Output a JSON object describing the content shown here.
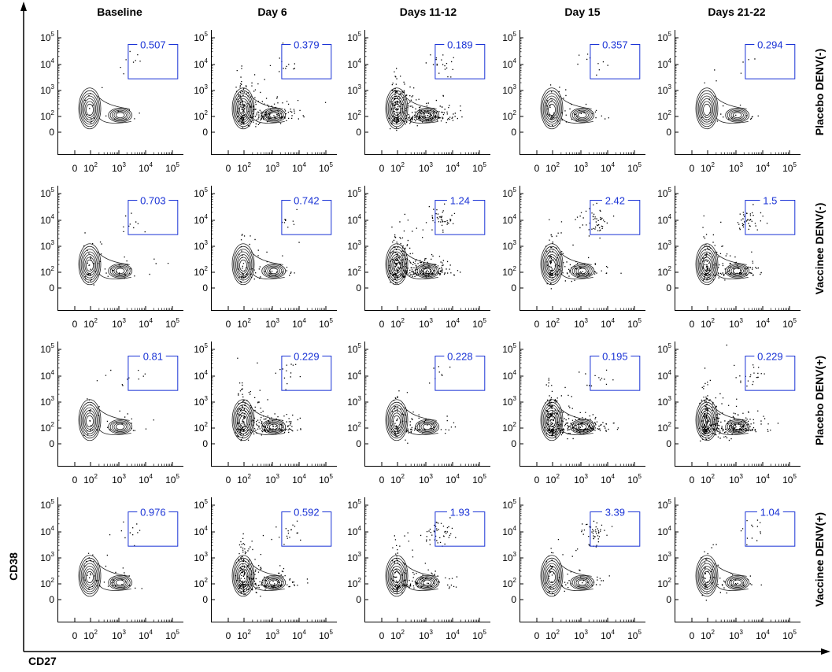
{
  "chart_data": {
    "type": "scatter",
    "description_axes": {
      "xlabel": "CD27",
      "ylabel": "CD38"
    },
    "xlabel": "CD27",
    "ylabel": "CD38",
    "x_scale": "log",
    "y_scale": "log",
    "columns": [
      "Baseline",
      "Day 6",
      "Days 11-12",
      "Day 15",
      "Days 21-22"
    ],
    "rows": [
      "Placebo DENV(-)",
      "Vaccinee DENV(-)",
      "Placebo DENV(+)",
      "Vaccinee DENV(+)"
    ],
    "x_tick_labels": [
      "0",
      "10",
      "10",
      "10",
      "10"
    ],
    "x_tick_exponents": [
      "",
      "2",
      "3",
      "4",
      "5"
    ],
    "y_tick_labels": [
      "0",
      "10",
      "10",
      "10",
      "10"
    ],
    "y_tick_exponents": [
      "",
      "2",
      "3",
      "4",
      "5"
    ],
    "gate_percentages": [
      [
        "0.507",
        "0.379",
        "0.189",
        "0.357",
        "0.294"
      ],
      [
        "0.703",
        "0.742",
        "1.24",
        "2.42",
        "1.5"
      ],
      [
        "0.81",
        "0.229",
        "0.228",
        "0.195",
        "0.229"
      ],
      [
        "0.976",
        "0.592",
        "1.93",
        "3.39",
        "1.04"
      ]
    ],
    "gate_color": "#1a33d6",
    "plot_style": "contour with outlier dots",
    "grid": false
  }
}
